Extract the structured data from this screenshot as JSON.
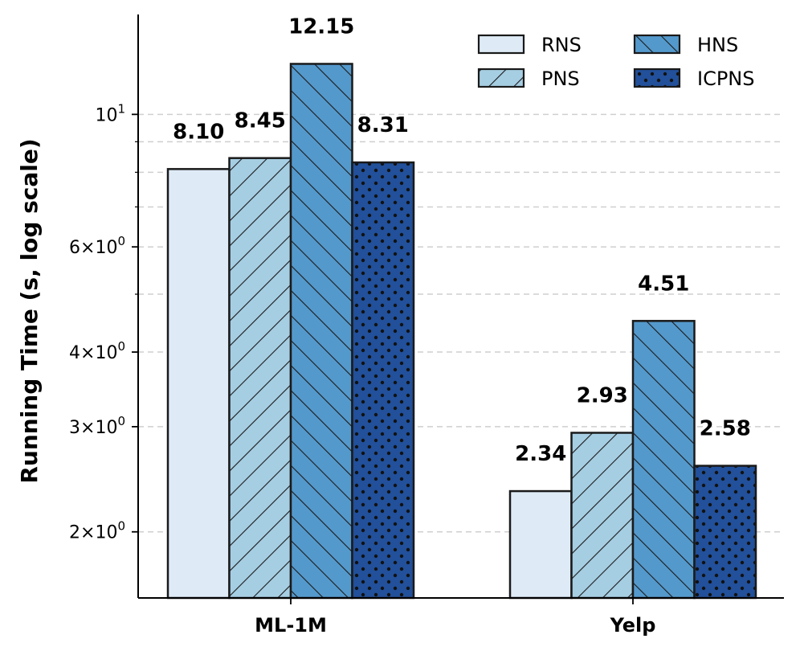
{
  "chart_data": {
    "type": "bar",
    "title": "",
    "xlabel": "",
    "ylabel": "Running Time (s, log scale)",
    "yscale": "log",
    "ylim": [
      1.55,
      14.7
    ],
    "categories": [
      "ML-1M",
      "Yelp"
    ],
    "series": [
      {
        "name": "RNS",
        "values": [
          8.1,
          2.34
        ],
        "color": "#deebf7",
        "hatch": "none"
      },
      {
        "name": "PNS",
        "values": [
          8.45,
          2.93
        ],
        "color": "#a6cee3",
        "hatch": "forward-diagonal"
      },
      {
        "name": "HNS",
        "values": [
          12.15,
          4.51
        ],
        "color": "#5499cc",
        "hatch": "back-diagonal"
      },
      {
        "name": "ICPNS",
        "values": [
          8.31,
          2.58
        ],
        "color": "#22509a",
        "hatch": "dots"
      }
    ],
    "data_labels": [
      [
        "8.10",
        "2.34"
      ],
      [
        "8.45",
        "2.93"
      ],
      [
        "12.15",
        "4.51"
      ],
      [
        "8.31",
        "2.58"
      ]
    ],
    "yticks": [
      {
        "value": 2,
        "base": "2×10",
        "exp": "0"
      },
      {
        "value": 3,
        "base": "3×10",
        "exp": "0"
      },
      {
        "value": 4,
        "base": "4×10",
        "exp": "0"
      },
      {
        "value": 6,
        "base": "6×10",
        "exp": "0"
      },
      {
        "value": 10,
        "base": "10",
        "exp": "1"
      }
    ],
    "grid": {
      "axis": "y",
      "style": "dashed",
      "values": [
        2,
        3,
        4,
        5,
        6,
        7,
        8,
        9,
        10
      ]
    },
    "legend": {
      "position": "top-right",
      "columns": 2
    }
  }
}
